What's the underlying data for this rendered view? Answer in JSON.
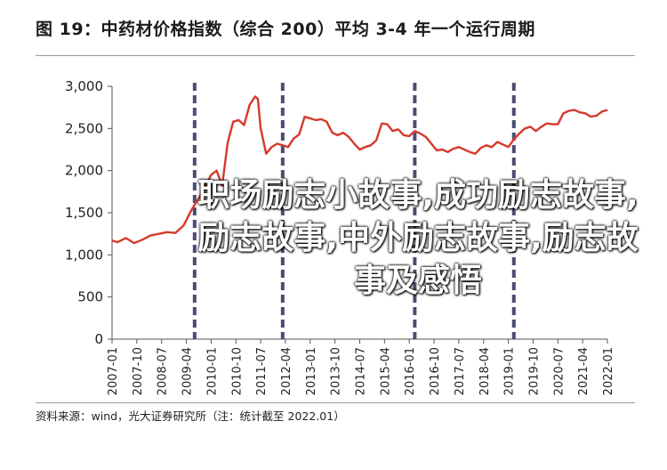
{
  "header": {
    "title": "图 19：中药材价格指数（综合 200）平均 3-4 年一个运行周期"
  },
  "footer": {
    "source": "资料来源：wind，光大证券研究所（注：统计截至 2022.01）"
  },
  "overlay": {
    "line1": "职场励志小故事,成功励志故事,",
    "line2": "励志故事,中外励志故事,励志故",
    "line3": "事及感悟"
  },
  "colors": {
    "series": "#d6392b",
    "cycle_marker": "#4a4d72",
    "axis": "#555555"
  },
  "chart_data": {
    "type": "line",
    "title": "",
    "xlabel": "",
    "ylabel": "",
    "ylim": [
      0,
      3000
    ],
    "yticks": [
      0,
      500,
      1000,
      1500,
      2000,
      2500,
      3000
    ],
    "ytick_labels": [
      "0",
      "500",
      "1,000",
      "1,500",
      "2,000",
      "2,500",
      "3,000"
    ],
    "xlim": [
      "2007-01",
      "2022-01"
    ],
    "xtick_labels": [
      "2007-01",
      "2007-10",
      "2008-07",
      "2009-04",
      "2010-01",
      "2010-10",
      "2011-07",
      "2012-04",
      "2013-01",
      "2013-10",
      "2014-07",
      "2015-04",
      "2016-01",
      "2016-10",
      "2017-07",
      "2018-04",
      "2019-01",
      "2019-10",
      "2020-07",
      "2021-04",
      "2022-01"
    ],
    "cycle_markers": [
      "2009-07",
      "2012-03",
      "2016-03",
      "2019-03"
    ],
    "grid": false,
    "legend": "none",
    "series": [
      {
        "x": [
          "2007-01",
          "2007-03",
          "2007-06",
          "2007-09",
          "2007-12",
          "2008-03",
          "2008-06",
          "2008-09",
          "2008-12",
          "2009-03",
          "2009-06",
          "2009-09",
          "2009-11",
          "2010-01",
          "2010-03",
          "2010-05",
          "2010-07",
          "2010-09",
          "2010-11",
          "2011-01",
          "2011-03",
          "2011-05",
          "2011-06",
          "2011-07",
          "2011-09",
          "2011-11",
          "2012-01",
          "2012-03",
          "2012-05",
          "2012-07",
          "2012-09",
          "2012-11",
          "2013-01",
          "2013-03",
          "2013-05",
          "2013-07",
          "2013-09",
          "2013-11",
          "2014-01",
          "2014-03",
          "2014-05",
          "2014-07",
          "2014-09",
          "2014-11",
          "2015-01",
          "2015-03",
          "2015-05",
          "2015-07",
          "2015-09",
          "2015-11",
          "2016-01",
          "2016-03",
          "2016-05",
          "2016-07",
          "2016-09",
          "2016-11",
          "2017-01",
          "2017-03",
          "2017-05",
          "2017-07",
          "2017-09",
          "2017-11",
          "2018-01",
          "2018-03",
          "2018-05",
          "2018-07",
          "2018-09",
          "2018-11",
          "2019-01",
          "2019-03",
          "2019-05",
          "2019-07",
          "2019-09",
          "2019-11",
          "2020-01",
          "2020-03",
          "2020-05",
          "2020-07",
          "2020-09",
          "2020-11",
          "2021-01",
          "2021-03",
          "2021-05",
          "2021-07",
          "2021-09",
          "2021-11",
          "2022-01"
        ],
        "values": [
          1170,
          1150,
          1200,
          1140,
          1180,
          1230,
          1250,
          1270,
          1260,
          1350,
          1540,
          1700,
          1820,
          1950,
          2000,
          1820,
          2330,
          2580,
          2600,
          2540,
          2780,
          2880,
          2850,
          2500,
          2200,
          2280,
          2320,
          2300,
          2280,
          2380,
          2430,
          2640,
          2620,
          2600,
          2610,
          2580,
          2450,
          2420,
          2450,
          2400,
          2320,
          2250,
          2280,
          2300,
          2360,
          2560,
          2550,
          2470,
          2490,
          2420,
          2410,
          2470,
          2440,
          2400,
          2320,
          2240,
          2250,
          2220,
          2260,
          2280,
          2250,
          2220,
          2200,
          2270,
          2300,
          2280,
          2340,
          2310,
          2280,
          2370,
          2440,
          2500,
          2520,
          2470,
          2520,
          2560,
          2550,
          2550,
          2680,
          2710,
          2720,
          2690,
          2680,
          2640,
          2650,
          2700,
          2720
        ]
      }
    ]
  }
}
